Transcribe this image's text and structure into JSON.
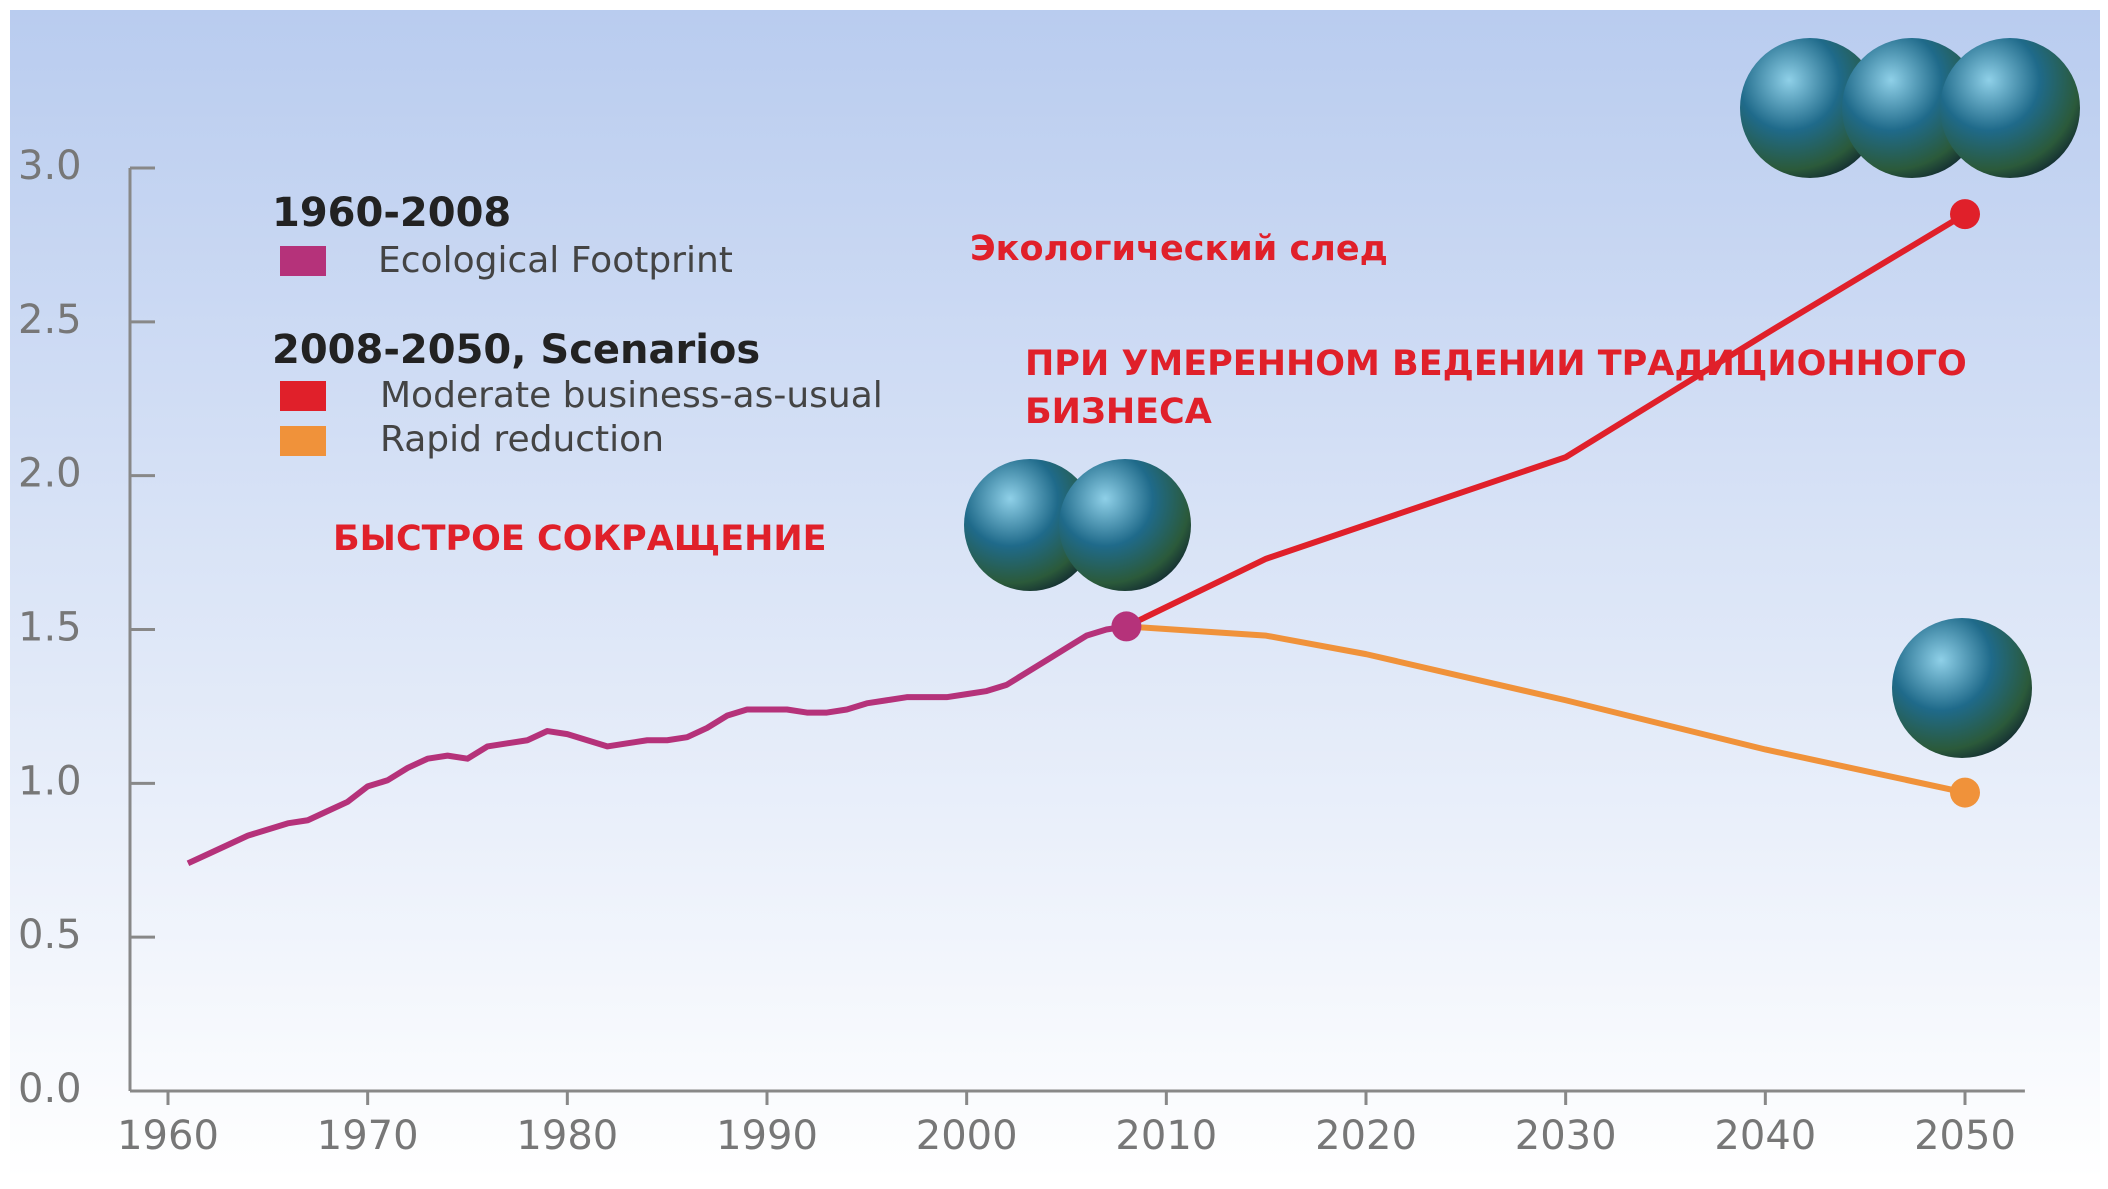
{
  "chart_data": {
    "type": "line",
    "legend_headings": [
      "1960-2008",
      "2008-2050, Scenarios"
    ],
    "annotations": [
      "Экологический след",
      "ПРИ УМЕРЕННОМ ВЕДЕНИИ ТРАДИЦИОННОГО",
      "БИЗНЕСА",
      "БЫСТРОЕ СОКРАЩЕНИЕ"
    ],
    "series": [
      {
        "name": "Ecological Footprint",
        "color": "#b5327a",
        "x": [
          1961,
          1962,
          1963,
          1964,
          1965,
          1966,
          1967,
          1968,
          1969,
          1970,
          1971,
          1972,
          1973,
          1974,
          1975,
          1976,
          1977,
          1978,
          1979,
          1980,
          1981,
          1982,
          1983,
          1984,
          1985,
          1986,
          1987,
          1988,
          1989,
          1990,
          1991,
          1992,
          1993,
          1994,
          1995,
          1996,
          1997,
          1998,
          1999,
          2000,
          2001,
          2002,
          2003,
          2004,
          2005,
          2006,
          2007,
          2008
        ],
        "values": [
          0.74,
          0.77,
          0.8,
          0.83,
          0.85,
          0.87,
          0.88,
          0.91,
          0.94,
          0.99,
          1.01,
          1.05,
          1.08,
          1.09,
          1.08,
          1.12,
          1.13,
          1.14,
          1.17,
          1.16,
          1.14,
          1.12,
          1.13,
          1.14,
          1.14,
          1.15,
          1.18,
          1.22,
          1.24,
          1.24,
          1.24,
          1.23,
          1.23,
          1.24,
          1.26,
          1.27,
          1.28,
          1.28,
          1.28,
          1.29,
          1.3,
          1.32,
          1.36,
          1.4,
          1.44,
          1.48,
          1.5,
          1.51
        ]
      },
      {
        "name": "Moderate business-as-usual",
        "color": "#e0202a",
        "x": [
          2008,
          2015,
          2020,
          2030,
          2040,
          2050
        ],
        "values": [
          1.51,
          1.73,
          1.84,
          2.06,
          2.46,
          2.85
        ]
      },
      {
        "name": "Rapid reduction",
        "color": "#f0923a",
        "x": [
          2008,
          2015,
          2020,
          2030,
          2040,
          2050
        ],
        "values": [
          1.51,
          1.48,
          1.42,
          1.27,
          1.11,
          0.97
        ]
      }
    ],
    "xlim": [
      1958,
      2053
    ],
    "xticks": [
      1960,
      1970,
      1980,
      1990,
      2000,
      2010,
      2020,
      2030,
      2040,
      2050
    ],
    "ylim": [
      0,
      3.0
    ],
    "yticks": [
      {
        "value": 0,
        "label": "0.0"
      },
      0.5,
      {
        "value": 1,
        "label": "1.0"
      },
      1.5,
      {
        "value": 2,
        "label": "2.0"
      },
      2.5,
      {
        "value": 3,
        "label": "3.0"
      }
    ],
    "grid": false
  }
}
